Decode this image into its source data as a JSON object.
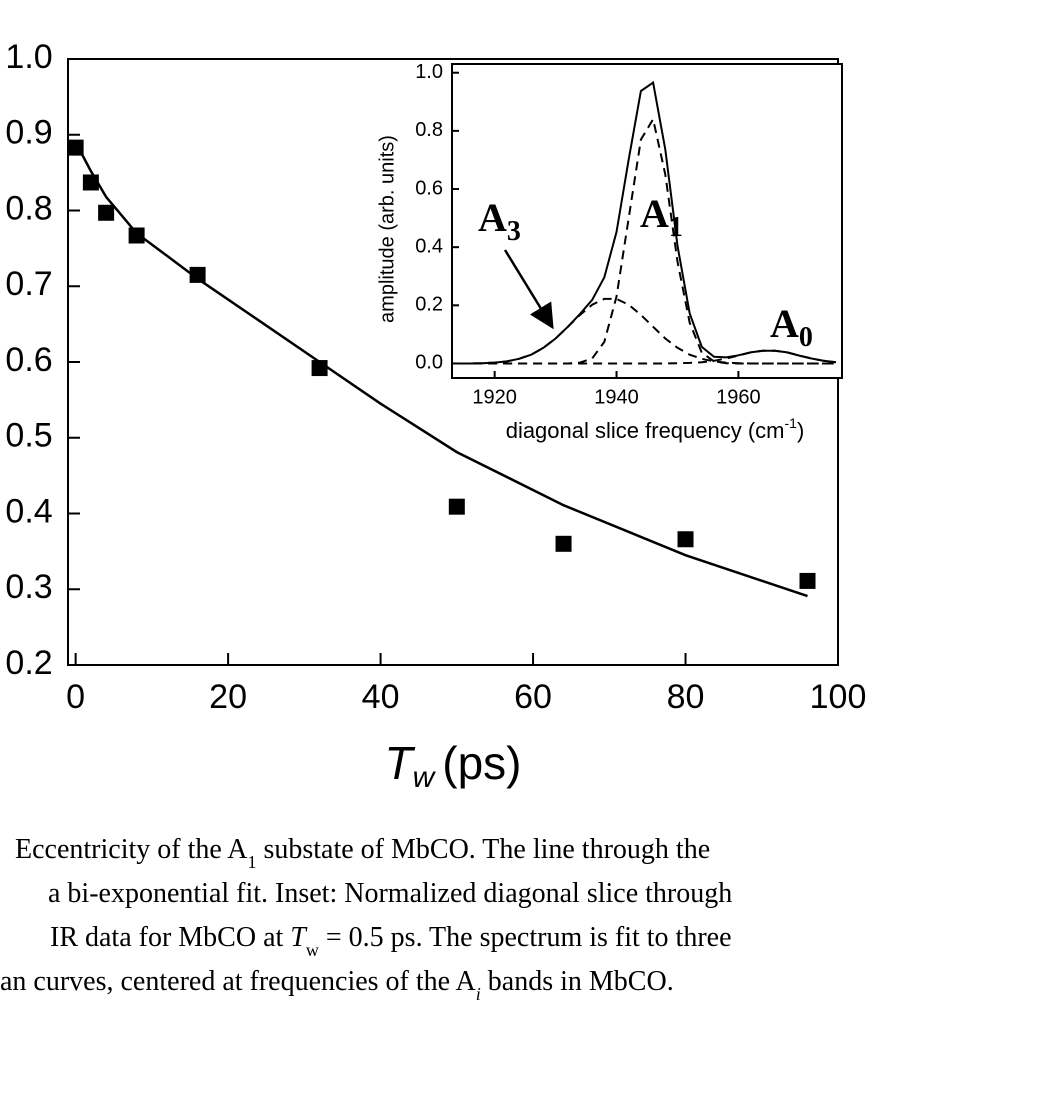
{
  "chart_data": [
    {
      "type": "scatter",
      "xlabel": {
        "symbol": "T",
        "subscript": "w",
        "unit": "(ps)"
      },
      "xlim": [
        -1,
        100
      ],
      "ylim": [
        0.2,
        1.0
      ],
      "xticks": [
        0,
        20,
        40,
        60,
        80,
        100
      ],
      "yticks": [
        0.2,
        0.3,
        0.4,
        0.5,
        0.6,
        0.7,
        0.8,
        0.9,
        {
          "value": 1,
          "label": "1.0"
        }
      ],
      "series": [
        {
          "mode": "markers",
          "color": "#000000",
          "x": [
            0,
            2,
            4,
            8,
            16,
            32,
            50,
            64,
            80,
            96
          ],
          "values": [
            0.883,
            0.837,
            0.797,
            0.767,
            0.715,
            0.592,
            0.409,
            0.36,
            0.366,
            0.311
          ]
        },
        {
          "mode": "line",
          "color": "#000000",
          "x": [
            0,
            2,
            4,
            8,
            12,
            16,
            24,
            32,
            40,
            50,
            64,
            80,
            96
          ],
          "values": [
            0.89,
            0.852,
            0.818,
            0.77,
            0.74,
            0.71,
            0.655,
            0.6,
            0.545,
            0.481,
            0.411,
            0.345,
            0.291
          ]
        }
      ]
    },
    {
      "type": "line",
      "xlabel": {
        "text": "diagonal slice frequency (cm",
        "superscript": "-1",
        "suffix": ")"
      },
      "ylabel": "amplitude (arb. units)",
      "xlim": [
        1913,
        1977
      ],
      "ylim": [
        -0.05,
        1.03
      ],
      "xticks": [
        1920,
        1940,
        1960
      ],
      "yticks": [
        {
          "value": 0,
          "label": "0.0"
        },
        0.2,
        0.4,
        0.6,
        0.8,
        {
          "value": 1,
          "label": "1.0"
        }
      ],
      "x": [
        1914,
        1916,
        1918,
        1920,
        1922,
        1924,
        1926,
        1928,
        1930,
        1932,
        1934,
        1936,
        1938,
        1940,
        1942,
        1944,
        1946,
        1948,
        1950,
        1952,
        1954,
        1956,
        1958,
        1960,
        1962,
        1964,
        1966,
        1968,
        1970,
        1972,
        1974,
        1976
      ],
      "series": [
        {
          "dash": false,
          "color": "#000000",
          "values": [
            0,
            0,
            0.001,
            0.003,
            0.007,
            0.016,
            0.03,
            0.054,
            0.086,
            0.126,
            0.17,
            0.219,
            0.296,
            0.452,
            0.702,
            0.937,
            0.966,
            0.736,
            0.405,
            0.172,
            0.057,
            0.023,
            0.021,
            0.028,
            0.038,
            0.044,
            0.044,
            0.038,
            0.027,
            0.017,
            0.009,
            0.004
          ]
        },
        {
          "dash": true,
          "color": "#000000",
          "values": [
            0,
            0,
            0,
            0,
            0,
            0,
            0,
            0,
            0,
            0,
            0.003,
            0.017,
            0.074,
            0.23,
            0.5,
            0.77,
            0.84,
            0.65,
            0.35,
            0.14,
            0.037,
            0.007,
            0.001,
            0,
            0,
            0,
            0,
            0,
            0,
            0,
            0,
            0
          ]
        },
        {
          "dash": true,
          "color": "#000000",
          "values": [
            0,
            0,
            0.001,
            0.003,
            0.007,
            0.016,
            0.03,
            0.054,
            0.086,
            0.126,
            0.167,
            0.202,
            0.222,
            0.222,
            0.202,
            0.167,
            0.126,
            0.086,
            0.054,
            0.03,
            0.016,
            0.007,
            0.003,
            0.001,
            0,
            0,
            0,
            0,
            0,
            0,
            0,
            0
          ]
        },
        {
          "dash": true,
          "color": "#000000",
          "values": [
            0,
            0,
            0,
            0,
            0,
            0,
            0,
            0,
            0,
            0,
            0,
            0,
            0,
            0,
            0,
            0,
            0,
            0,
            0.001,
            0.002,
            0.004,
            0.009,
            0.017,
            0.027,
            0.038,
            0.044,
            0.044,
            0.038,
            0.027,
            0.017,
            0.009,
            0.004
          ]
        }
      ],
      "annotations": [
        {
          "text": "A",
          "subscript": "3"
        },
        {
          "text": "A",
          "subscript": "1"
        },
        {
          "text": "A",
          "subscript": "0"
        }
      ]
    }
  ],
  "caption": [
    [
      {
        "text": "Eccentricity of the A"
      },
      {
        "text": "1",
        "style": "sub"
      },
      {
        "text": " substate of MbCO. The line through the"
      }
    ],
    [
      {
        "text": "a bi-exponential fit. Inset: Normalized diagonal slice through"
      }
    ],
    [
      {
        "text": "IR data for MbCO at "
      },
      {
        "text": "T",
        "style": "italic"
      },
      {
        "text": "w",
        "style": "sub"
      },
      {
        "text": " = 0.5 ps. The spectrum is fit to three"
      }
    ],
    [
      {
        "text": "an curves, centered at frequencies of the A"
      },
      {
        "text": "i",
        "style": "italic-sub"
      },
      {
        "text": " bands in MbCO."
      }
    ]
  ]
}
